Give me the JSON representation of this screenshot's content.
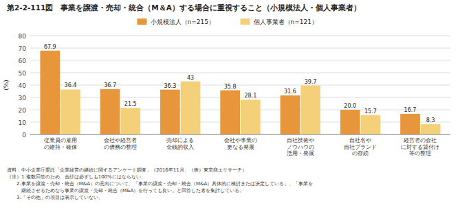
{
  "chart_data": {
    "type": "bar",
    "title": "第2-2-111図　事業を譲渡・売却・統合（M＆A）する場合に重視すること（小規模法人・個人事業者）",
    "y_label": "(%)",
    "categories": [
      "従業員の雇用\nの維持・確保",
      "会社や経営者\nの債務の整理",
      "売却による\n金銭的収入",
      "会社や事業の\n更なる発展",
      "自社技術や\nノウハウの\n活用・発展",
      "自社名や\n自社ブランド\nの存続",
      "経営者の会社\nに対する貸付け\n等の整理"
    ],
    "series": [
      {
        "name": "小規模法人（n=215）",
        "color": "#E8963C",
        "values": [
          67.9,
          36.7,
          36.3,
          35.8,
          31.6,
          20.0,
          16.7
        ],
        "value_labels": [
          "67.9",
          "36.7",
          "36.3",
          "35.8",
          "31.6",
          "20.0",
          "16.7"
        ]
      },
      {
        "name": "個人事業者（n=121）",
        "color": "#F5D07A",
        "values": [
          36.4,
          21.5,
          43.0,
          28.1,
          39.7,
          15.7,
          8.3
        ]
      }
    ],
    "ylim": [
      0,
      80
    ],
    "yticks": [
      0,
      10,
      20,
      30,
      40,
      50,
      60,
      70,
      80
    ],
    "grid": true,
    "legend": "top",
    "data_labels": true,
    "annotations": [
      "資料：中小企業庁委託「企業経営の継続に関するアンケート調査」（2016年11月、（株）東京商エリサーチ）",
      "（注）1.複数回答のため、合計は必ずしも100%にはならない。",
      "　　2.事業を譲渡・売却・統合（M&A）の意向について、「事業の譲渡・売却・統合（M&A）具体的に検討または決定している」、「事業を",
      "　　　継続させるためなら事業の譲渡・売却・統合（M&A）を行っても良い」と回答した者を集計している。",
      "　　3.「その他」の項目は表示していない。"
    ]
  }
}
